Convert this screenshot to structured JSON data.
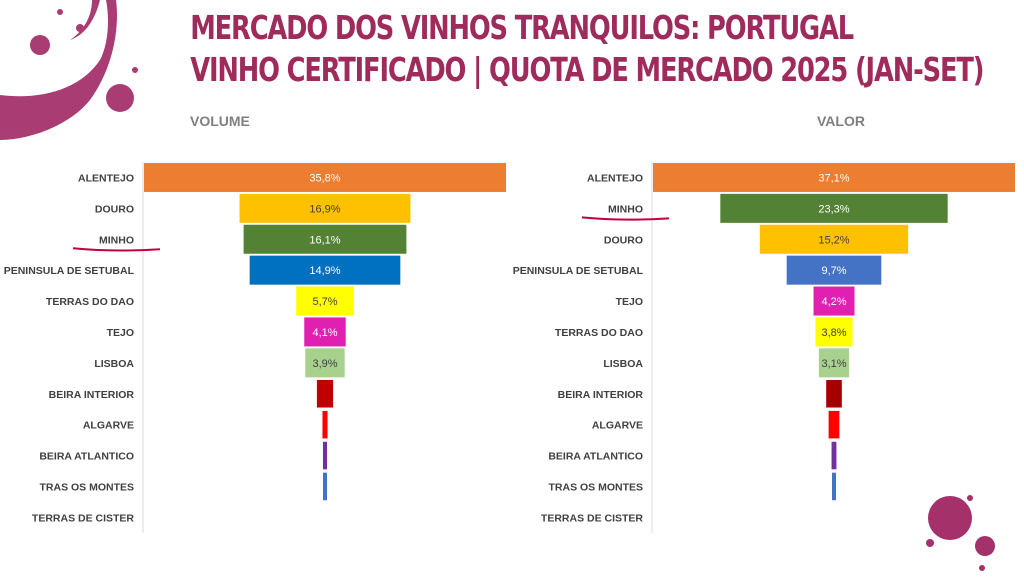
{
  "title": {
    "line1": "MERCADO DOS VINHOS TRANQUILOS: PORTUGAL",
    "line2": "VINHO CERTIFICADO | QUOTA DE MERCADO 2025 (JAN-SET)",
    "color": "#9e2b5c"
  },
  "chart_data": [
    {
      "type": "bar",
      "title": "VOLUME",
      "orientation": "horizontal-centered-funnel",
      "xlim": [
        0,
        35.8
      ],
      "highlighted_category": "MINHO",
      "categories": [
        "ALENTEJO",
        "DOURO",
        "MINHO",
        "PENINSULA DE SETUBAL",
        "TERRAS DO DAO",
        "TEJO",
        "LISBOA",
        "BEIRA INTERIOR",
        "ALGARVE",
        "BEIRA ATLANTICO",
        "TRAS OS MONTES",
        "TERRAS DE CISTER"
      ],
      "values": [
        35.8,
        16.9,
        16.1,
        14.9,
        5.7,
        4.1,
        3.9,
        1.6,
        0.5,
        0.4,
        0.3,
        0.0
      ],
      "data_labels": [
        "35,8%",
        "16,9%",
        "16,1%",
        "14,9%",
        "5,7%",
        "4,1%",
        "3,9%",
        "",
        "",
        "",
        "",
        ""
      ],
      "colors": [
        "#ed7d31",
        "#ffc000",
        "#548235",
        "#0070c0",
        "#ffff00",
        "#e020b0",
        "#a9d18e",
        "#c00000",
        "#ff0000",
        "#7030a0",
        "#4472c4",
        "#ffffff"
      ]
    },
    {
      "type": "bar",
      "title": "VALOR",
      "orientation": "horizontal-centered-funnel",
      "xlim": [
        0,
        37.1
      ],
      "highlighted_category": "MINHO",
      "categories": [
        "ALENTEJO",
        "MINHO",
        "DOURO",
        "PENINSULA DE SETUBAL",
        "TEJO",
        "TERRAS DO DAO",
        "LISBOA",
        "BEIRA INTERIOR",
        "ALGARVE",
        "BEIRA ATLANTICO",
        "TRAS OS MONTES",
        "TERRAS DE CISTER"
      ],
      "values": [
        37.1,
        23.3,
        15.2,
        9.7,
        4.2,
        3.8,
        3.1,
        1.6,
        1.1,
        0.5,
        0.4,
        0.0
      ],
      "data_labels": [
        "37,1%",
        "23,3%",
        "15,2%",
        "9,7%",
        "4,2%",
        "3,8%",
        "3,1%",
        "",
        "",
        "",
        "",
        ""
      ],
      "colors": [
        "#ed7d31",
        "#548235",
        "#ffc000",
        "#4472c4",
        "#e020b0",
        "#ffff00",
        "#a9d18e",
        "#a50000",
        "#ff0000",
        "#7030a0",
        "#4472c4",
        "#ffffff"
      ]
    }
  ],
  "highlight_color": "#c00040",
  "splash_color": "#9b1b5a"
}
